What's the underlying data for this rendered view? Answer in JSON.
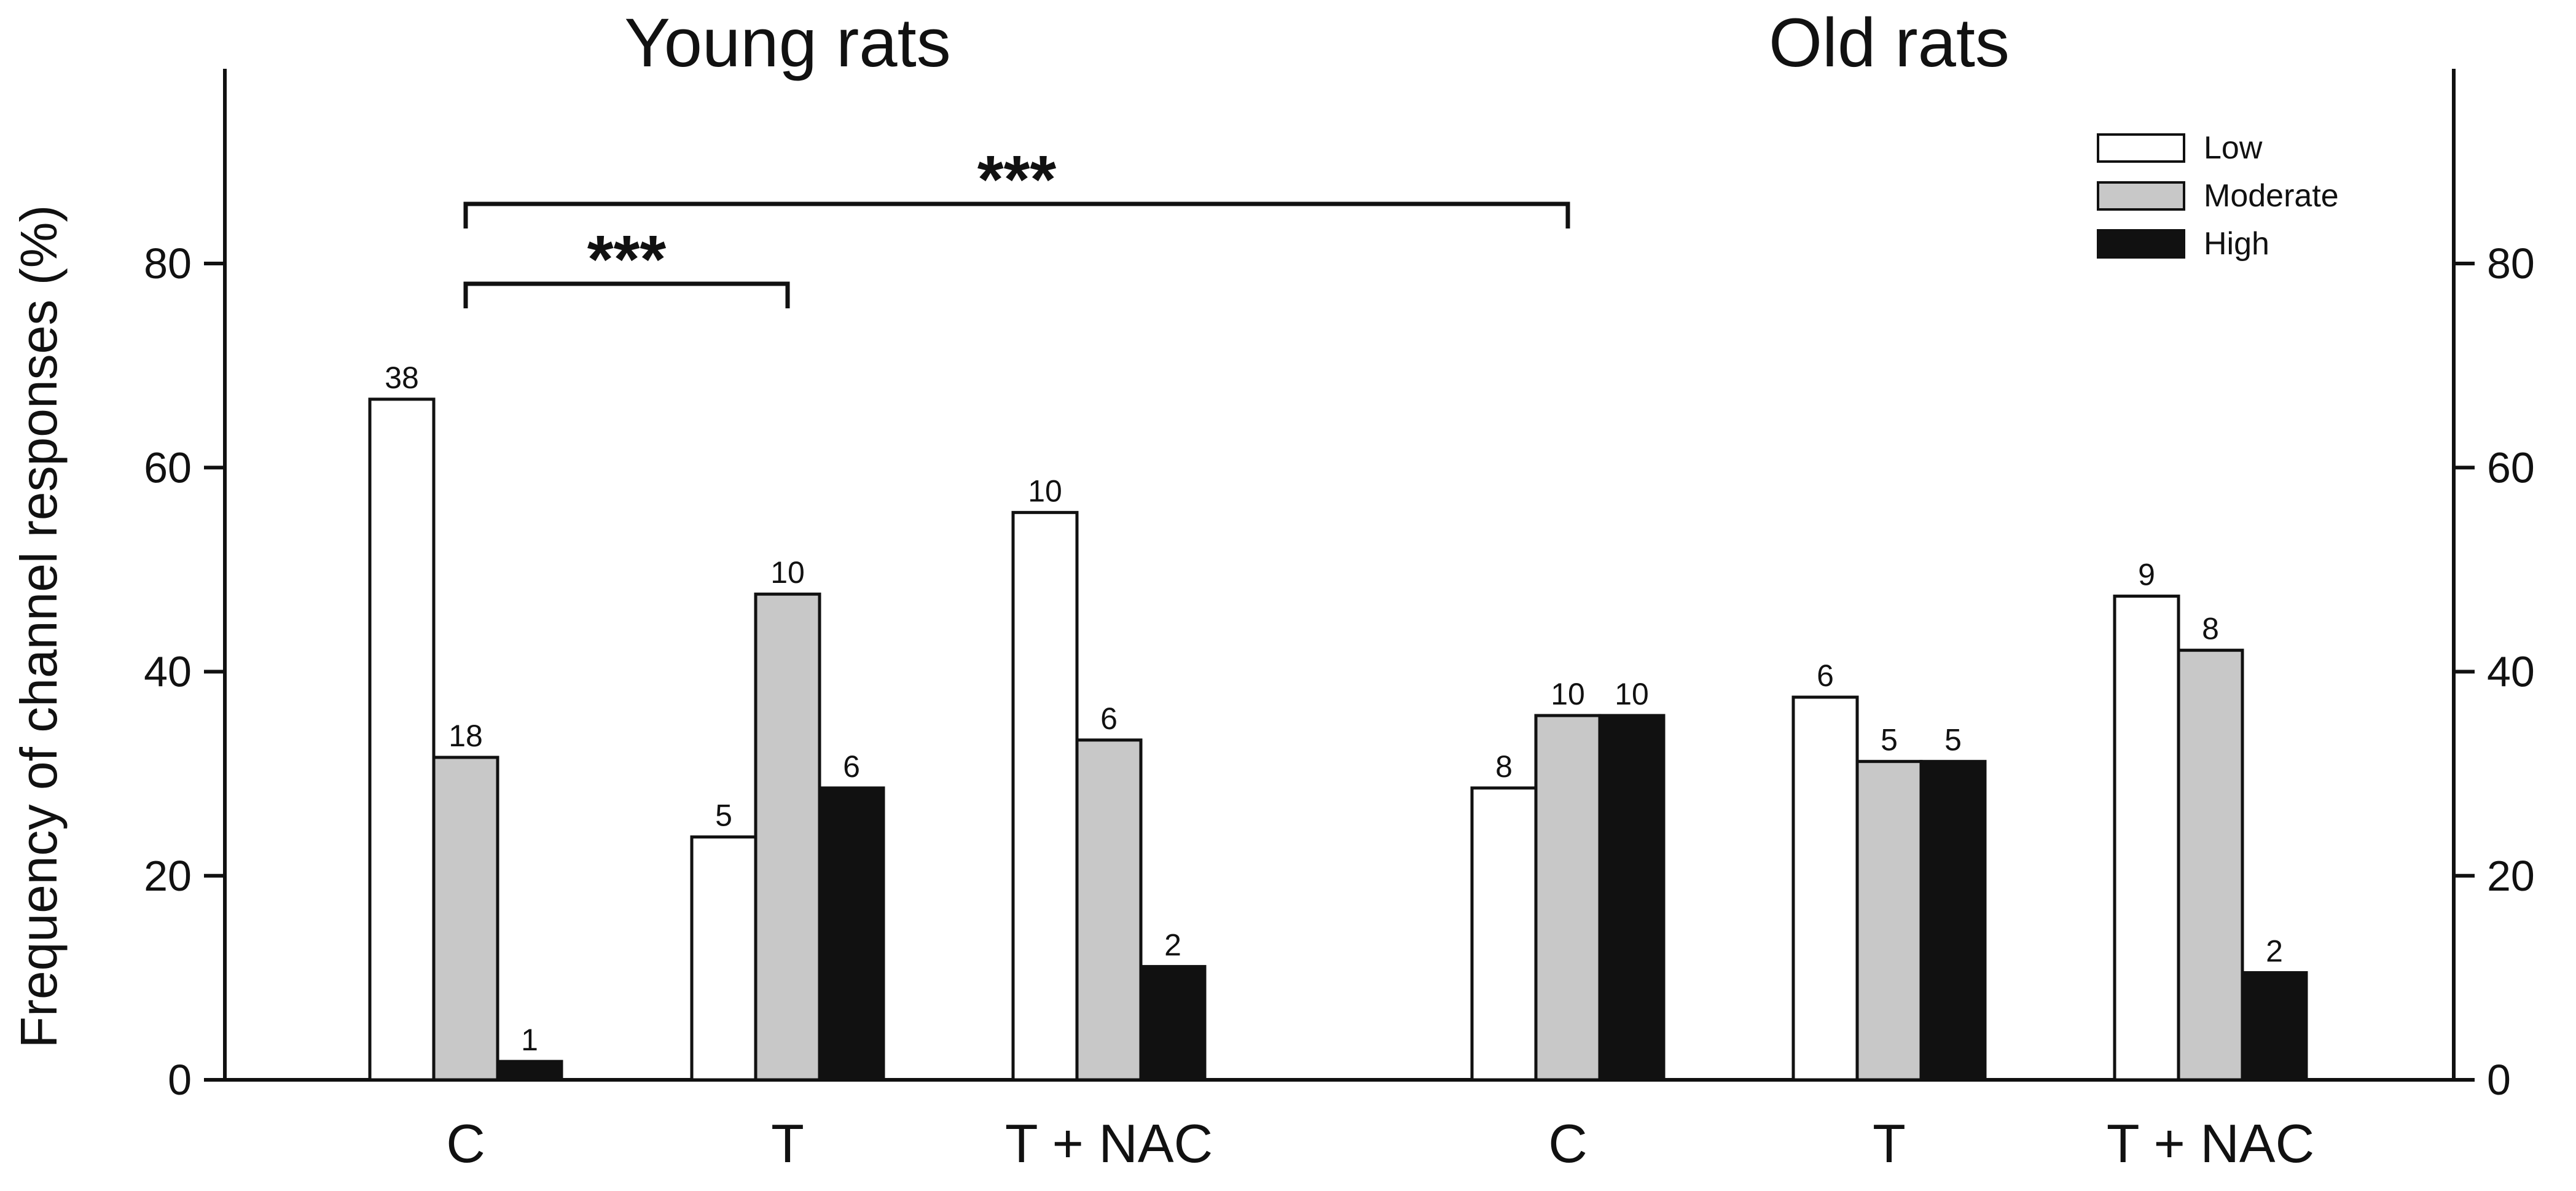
{
  "chart_data": {
    "type": "bar",
    "ylabel": "Frequency of channel responses (%)",
    "ylim": [
      0,
      100
    ],
    "yticks": [
      0,
      20,
      40,
      60,
      80
    ],
    "groups": [
      {
        "title": "Young rats",
        "categories": [
          "C",
          "T",
          "T + NAC"
        ]
      },
      {
        "title": "Old rats",
        "categories": [
          "C",
          "T",
          "T + NAC"
        ]
      }
    ],
    "categories": [
      "C",
      "T",
      "T + NAC",
      "C",
      "T",
      "T + NAC"
    ],
    "series": [
      {
        "name": "Low",
        "color": "#ffffff",
        "values": [
          66.7,
          23.8,
          55.6,
          28.6,
          37.5,
          47.4
        ],
        "labels": [
          "38",
          "5",
          "10",
          "8",
          "6",
          "9"
        ]
      },
      {
        "name": "Moderate",
        "color": "#c8c8c8",
        "values": [
          31.6,
          47.6,
          33.3,
          35.7,
          31.2,
          42.1
        ],
        "labels": [
          "18",
          "10",
          "6",
          "10",
          "5",
          "8"
        ]
      },
      {
        "name": "High",
        "color": "#111111",
        "values": [
          1.8,
          28.6,
          11.1,
          35.7,
          31.2,
          10.5
        ],
        "labels": [
          "1",
          "6",
          "2",
          "10",
          "5",
          "2"
        ]
      }
    ],
    "legend": {
      "position": "top-right",
      "entries": [
        "Low",
        "Moderate",
        "High"
      ]
    },
    "significance": [
      {
        "from": 0,
        "to": 1,
        "label": "***"
      },
      {
        "from": 0,
        "to": 3,
        "label": "***"
      }
    ],
    "grid": false,
    "right_axis": true
  }
}
